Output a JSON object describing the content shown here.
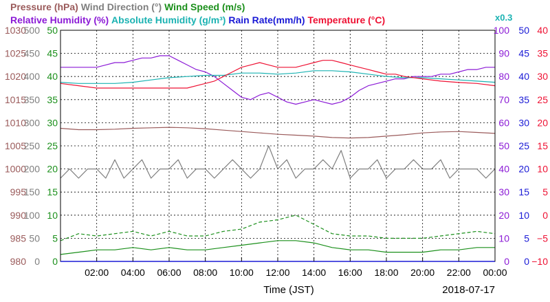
{
  "chart_data": {
    "type": "line",
    "date_label": "2018-07-17",
    "xlabel": "Time (JST)",
    "x_ticks": [
      "02:00",
      "04:00",
      "06:00",
      "08:00",
      "10:00",
      "12:00",
      "14:00",
      "16:00",
      "18:00",
      "20:00",
      "22:00",
      "00:00"
    ],
    "xlim_hours": [
      0,
      24
    ],
    "grid": true,
    "header_row1": [
      {
        "text": "Pressure (hPa)",
        "color": "#9a5a5a"
      },
      {
        "text": "Wind Direction (°)",
        "color": "#7f7f7f"
      },
      {
        "text": "Wind Speed (m/s)",
        "color": "#1a8f1a"
      }
    ],
    "header_row2": [
      {
        "text": "Relative Humidity (%)",
        "color": "#8b1ad6"
      },
      {
        "text": "Absolute Humidity (g/m³)",
        "color": "#1ab2b2"
      },
      {
        "text": "Rain Rate(mm/h)",
        "color": "#1a1ad6"
      },
      {
        "text": "Temperature (°C)",
        "color": "#ee1133"
      }
    ],
    "abs_humidity_multiplier": "x0.3",
    "axes": {
      "pressure": {
        "color": "#9a5a5a",
        "side": "left",
        "range": [
          980,
          1030
        ],
        "ticks": [
          "1030",
          "1025",
          "1020",
          "1015",
          "1010",
          "1005",
          "1000",
          "995",
          "990",
          "985",
          "980"
        ]
      },
      "wind_direction": {
        "color": "#7f7f7f",
        "side": "left",
        "range": [
          0,
          500
        ],
        "ticks": [
          "500",
          "450",
          "400",
          "350",
          "300",
          "250",
          "200",
          "150",
          "100",
          "50",
          "0"
        ]
      },
      "wind_speed": {
        "color": "#1a8f1a",
        "side": "left",
        "range": [
          0,
          50
        ],
        "ticks": [
          "50",
          "45",
          "40",
          "35",
          "30",
          "25",
          "20",
          "15",
          "10",
          "5",
          "0"
        ]
      },
      "relative_humidity": {
        "color": "#8b1ad6",
        "side": "right",
        "range": [
          0,
          100
        ],
        "ticks": [
          "100",
          "90",
          "80",
          "70",
          "60",
          "50",
          "40",
          "30",
          "20",
          "10",
          "0"
        ]
      },
      "rain_rate": {
        "color": "#1a1ad6",
        "side": "right",
        "range": [
          0,
          50
        ],
        "ticks": [
          "50",
          "45",
          "40",
          "35",
          "30",
          "25",
          "20",
          "15",
          "10",
          "5",
          "0"
        ]
      },
      "temperature": {
        "color": "#ee1133",
        "side": "right",
        "range": [
          -10,
          40
        ],
        "ticks": [
          "40",
          "35",
          "30",
          "25",
          "20",
          "15",
          "10",
          "5",
          "0",
          "−5",
          "−10"
        ]
      }
    },
    "series": [
      {
        "name": "Relative Humidity",
        "color": "#8b1ad6",
        "axis": "relative_humidity",
        "style": "solid",
        "x": [
          0,
          1,
          2,
          2.5,
          3,
          3.5,
          4,
          4.5,
          5,
          5.5,
          6,
          6.5,
          7,
          7.5,
          8,
          8.5,
          9,
          9.5,
          10,
          10.5,
          11,
          11.5,
          12,
          12.5,
          13,
          13.5,
          14,
          14.5,
          15,
          15.5,
          16,
          16.5,
          17,
          17.5,
          18,
          18.5,
          19,
          19.5,
          20,
          20.5,
          21,
          21.5,
          22,
          22.5,
          23,
          23.5,
          24
        ],
        "y": [
          84,
          84,
          84,
          85,
          86,
          86,
          87,
          88,
          88,
          89,
          89,
          87,
          85,
          83,
          82,
          80,
          77,
          74,
          71,
          70,
          72,
          73,
          71,
          69,
          68,
          69,
          70,
          69,
          68,
          69,
          71,
          74,
          76,
          77,
          78,
          79,
          79,
          80,
          80,
          80,
          81,
          81,
          82,
          83,
          83,
          84,
          84
        ]
      },
      {
        "name": "Absolute Humidity",
        "color": "#1ab2b2",
        "axis": "relative_humidity",
        "style": "solid",
        "x": [
          0,
          1,
          2,
          3,
          4,
          5,
          6,
          7,
          8,
          9,
          10,
          11,
          12,
          13,
          14,
          15,
          16,
          17,
          18,
          19,
          20,
          21,
          22,
          23,
          24
        ],
        "y": [
          77.5,
          77,
          77,
          77,
          77.5,
          78.5,
          79.5,
          80,
          80.5,
          80.5,
          81.5,
          81.5,
          81,
          81.5,
          82.5,
          82.5,
          82,
          81,
          80,
          79.5,
          79.5,
          79,
          78.5,
          78,
          77.5
        ]
      },
      {
        "name": "Temperature",
        "color": "#ee1133",
        "axis": "temperature",
        "style": "solid",
        "x": [
          0,
          1,
          2,
          3,
          4,
          5,
          6,
          7,
          8,
          8.5,
          9,
          9.5,
          10,
          10.5,
          11,
          11.5,
          12,
          12.5,
          13,
          13.5,
          14,
          14.5,
          15,
          15.5,
          16,
          16.5,
          17,
          17.5,
          18,
          18.5,
          19,
          20,
          21,
          22,
          23,
          24
        ],
        "y": [
          28.5,
          28,
          27.5,
          27.5,
          27.5,
          27.5,
          27.5,
          27.5,
          28.5,
          29,
          30,
          31,
          32,
          32.5,
          33,
          32.5,
          32,
          32,
          32,
          32.5,
          33,
          33.5,
          33.5,
          33,
          32.5,
          32,
          31.5,
          31,
          30.5,
          30.5,
          30,
          29.5,
          29,
          28.7,
          28.5,
          28
        ]
      },
      {
        "name": "Pressure",
        "color": "#9a5a5a",
        "axis": "pressure",
        "style": "solid",
        "x": [
          0,
          1,
          2,
          3,
          4,
          5,
          6,
          7,
          8,
          9,
          10,
          11,
          12,
          13,
          14,
          15,
          16,
          17,
          18,
          19,
          20,
          21,
          22,
          23,
          24
        ],
        "y": [
          1008.8,
          1008.5,
          1008.5,
          1008.6,
          1008.8,
          1008.9,
          1009,
          1008.9,
          1008.7,
          1008.4,
          1008.1,
          1007.8,
          1007.5,
          1007.3,
          1007.1,
          1006.8,
          1006.7,
          1006.8,
          1007.1,
          1007.4,
          1007.8,
          1008.0,
          1008.1,
          1007.9,
          1007.7
        ]
      },
      {
        "name": "Wind Direction",
        "color": "#7f7f7f",
        "axis": "wind_direction",
        "style": "solid",
        "x": [
          0,
          0.5,
          1,
          1.5,
          2,
          2.5,
          3,
          3.5,
          4,
          4.5,
          5,
          5.5,
          6,
          6.5,
          7,
          7.5,
          8,
          8.5,
          9,
          9.5,
          10,
          10.5,
          11,
          11.5,
          12,
          12.5,
          13,
          13.5,
          14,
          14.5,
          15,
          15.5,
          16,
          16.5,
          17,
          17.5,
          18,
          18.5,
          19,
          19.5,
          20,
          20.5,
          21,
          21.5,
          22,
          22.5,
          23,
          23.5,
          24
        ],
        "y": [
          180,
          200,
          180,
          200,
          200,
          180,
          220,
          180,
          200,
          220,
          180,
          200,
          200,
          220,
          180,
          200,
          200,
          180,
          200,
          220,
          200,
          180,
          200,
          250,
          200,
          220,
          180,
          200,
          200,
          220,
          200,
          240,
          180,
          200,
          200,
          220,
          180,
          200,
          200,
          220,
          200,
          200,
          220,
          180,
          200,
          200,
          200,
          180,
          200
        ]
      },
      {
        "name": "Wind Speed Gust",
        "color": "#1a8f1a",
        "axis": "wind_speed",
        "style": "dashed",
        "x": [
          0,
          1,
          2,
          3,
          4,
          5,
          6,
          7,
          8,
          9,
          10,
          11,
          12,
          13,
          14,
          15,
          16,
          17,
          18,
          19,
          20,
          21,
          22,
          23,
          24
        ],
        "y": [
          4.5,
          6,
          5.5,
          6,
          6.5,
          5.5,
          6.5,
          5.5,
          5.5,
          6.5,
          7,
          8.5,
          9,
          10,
          8,
          6,
          5.5,
          5.5,
          5,
          5,
          5,
          5.5,
          6,
          6.5,
          6
        ]
      },
      {
        "name": "Wind Speed",
        "color": "#1a8f1a",
        "axis": "wind_speed",
        "style": "solid",
        "x": [
          0,
          1,
          2,
          3,
          4,
          5,
          6,
          7,
          8,
          9,
          10,
          11,
          12,
          13,
          14,
          15,
          16,
          17,
          18,
          19,
          20,
          21,
          22,
          23,
          24
        ],
        "y": [
          1.5,
          2,
          2.5,
          2.5,
          3,
          2.5,
          3,
          2.5,
          2.5,
          3,
          3.5,
          4,
          4.5,
          4.5,
          4,
          3,
          2.5,
          2.5,
          2,
          2,
          2,
          2.5,
          2.5,
          3,
          3
        ]
      }
    ]
  }
}
